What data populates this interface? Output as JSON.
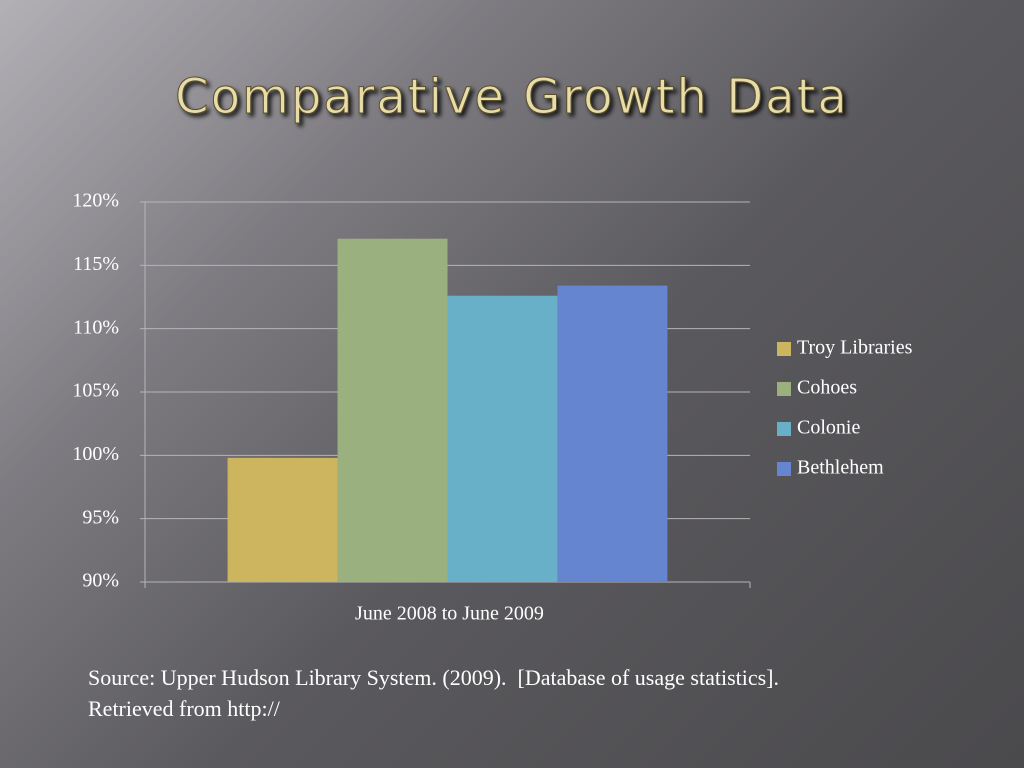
{
  "chart_data": {
    "type": "bar",
    "title": "Comparative Growth Data",
    "categories": [
      "June 2008 to June 2009"
    ],
    "series": [
      {
        "name": "Troy Libraries",
        "color": "#cdb55f",
        "values": [
          99.8
        ]
      },
      {
        "name": "Cohoes",
        "color": "#9bb07f",
        "values": [
          117.1
        ]
      },
      {
        "name": "Colonie",
        "color": "#68afc8",
        "values": [
          112.6
        ]
      },
      {
        "name": "Bethlehem",
        "color": "#6685d1",
        "values": [
          113.4
        ]
      }
    ],
    "ylim": [
      90,
      120
    ],
    "yticks": [
      {
        "value": 90,
        "label": "90%"
      },
      {
        "value": 95,
        "label": "95%"
      },
      {
        "value": 100,
        "label": "100%"
      },
      {
        "value": 105,
        "label": "105%"
      },
      {
        "value": 110,
        "label": "110%"
      },
      {
        "value": 115,
        "label": "115%"
      },
      {
        "value": 120,
        "label": "120%"
      }
    ],
    "grid": true,
    "legend": "right",
    "source": "Source: Upper Hudson Library System. (2009).  [Database of usage statistics].  Retrieved from http://"
  }
}
